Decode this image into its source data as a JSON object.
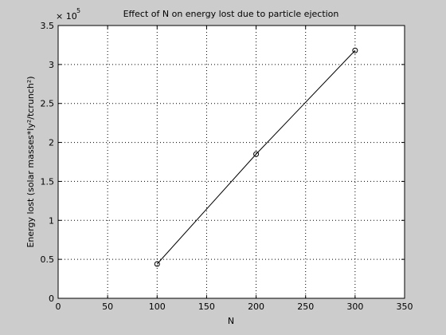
{
  "background_color": "#cccccc",
  "axes_color": "#ffffff",
  "line_color": "#000000",
  "chart_data": {
    "type": "line",
    "title": "Effect of N on energy lost due to particle ejection",
    "xlabel": "N",
    "ylabel": "Energy lost (solar masses*ly²/tcrunch²)",
    "xlim": [
      0,
      350
    ],
    "ylim": [
      0,
      350000
    ],
    "x_ticks": [
      0,
      50,
      100,
      150,
      200,
      250,
      300,
      350
    ],
    "y_ticks": [
      0,
      50000,
      100000,
      150000,
      200000,
      250000,
      300000,
      350000
    ],
    "x_tick_labels": [
      "0",
      "50",
      "100",
      "150",
      "200",
      "250",
      "300",
      "350"
    ],
    "y_tick_labels": [
      "0",
      "0.5",
      "1",
      "1.5",
      "2",
      "2.5",
      "3",
      "3.5"
    ],
    "y_exponent_base": "× 10",
    "y_exponent_power": "5",
    "grid": true,
    "grid_style": "dotted",
    "marker": "circle",
    "series": [
      {
        "x": [
          100,
          200,
          300
        ],
        "y": [
          44000,
          185000,
          318000
        ]
      }
    ]
  }
}
